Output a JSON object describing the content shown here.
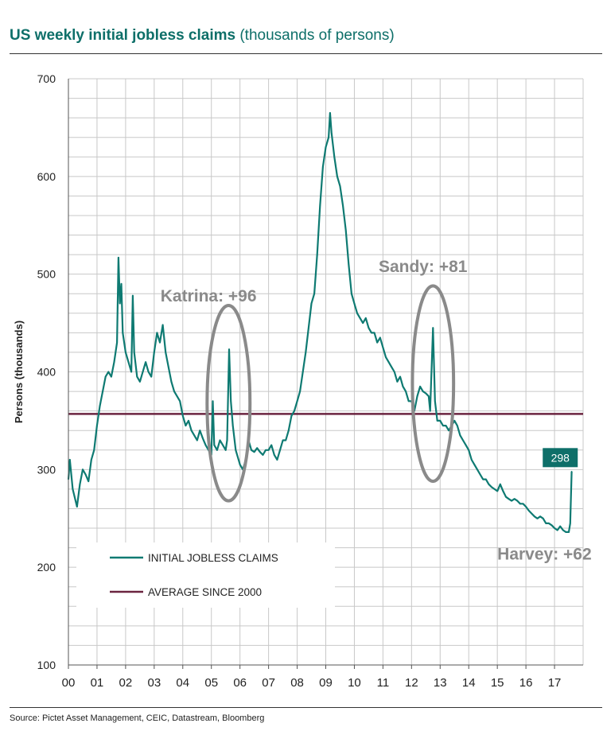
{
  "header": {
    "title_bold": "US weekly initial jobless claims",
    "title_rest": "(thousands of persons)"
  },
  "footer": {
    "source": "Source: Pictet Asset Management, CEIC, Datastream, Bloomberg"
  },
  "colors": {
    "claims": "#0e7a72",
    "average": "#6b2440",
    "ellipse": "#8a8a8a",
    "grid": "#c8c8c8",
    "annotation": "#8a8a8a",
    "badge_bg": "#0e6f69"
  },
  "chart_data": {
    "type": "line",
    "title": "US weekly initial jobless claims",
    "ylabel": "Persons (thousands)",
    "xlabel": "",
    "ylim": [
      100,
      700
    ],
    "xlim": [
      0,
      18
    ],
    "yticks": [
      100,
      200,
      300,
      400,
      500,
      600,
      700
    ],
    "xticks": [
      {
        "x": 0,
        "label": "00"
      },
      {
        "x": 1,
        "label": "01"
      },
      {
        "x": 2,
        "label": "02"
      },
      {
        "x": 3,
        "label": "03"
      },
      {
        "x": 4,
        "label": "04"
      },
      {
        "x": 5,
        "label": "05"
      },
      {
        "x": 6,
        "label": "06"
      },
      {
        "x": 7,
        "label": "07"
      },
      {
        "x": 8,
        "label": "08"
      },
      {
        "x": 9,
        "label": "09"
      },
      {
        "x": 10,
        "label": "10"
      },
      {
        "x": 11,
        "label": "11"
      },
      {
        "x": 12,
        "label": "12"
      },
      {
        "x": 13,
        "label": "13"
      },
      {
        "x": 14,
        "label": "14"
      },
      {
        "x": 15,
        "label": "15"
      },
      {
        "x": 16,
        "label": "16"
      },
      {
        "x": 17,
        "label": "17"
      }
    ],
    "legend": {
      "position": "bottom-left",
      "entries": [
        "INITIAL JOBLESS CLAIMS",
        "AVERAGE SINCE 2000"
      ]
    },
    "series": [
      {
        "name": "INITIAL JOBLESS CLAIMS",
        "points": [
          [
            0.0,
            290
          ],
          [
            0.05,
            310
          ],
          [
            0.15,
            280
          ],
          [
            0.25,
            268
          ],
          [
            0.3,
            262
          ],
          [
            0.4,
            285
          ],
          [
            0.5,
            300
          ],
          [
            0.6,
            295
          ],
          [
            0.7,
            288
          ],
          [
            0.8,
            310
          ],
          [
            0.9,
            320
          ],
          [
            1.0,
            345
          ],
          [
            1.1,
            365
          ],
          [
            1.2,
            380
          ],
          [
            1.3,
            395
          ],
          [
            1.4,
            400
          ],
          [
            1.5,
            395
          ],
          [
            1.6,
            410
          ],
          [
            1.7,
            430
          ],
          [
            1.75,
            517
          ],
          [
            1.8,
            470
          ],
          [
            1.85,
            490
          ],
          [
            1.9,
            440
          ],
          [
            2.0,
            420
          ],
          [
            2.1,
            410
          ],
          [
            2.2,
            400
          ],
          [
            2.25,
            478
          ],
          [
            2.3,
            420
          ],
          [
            2.4,
            395
          ],
          [
            2.5,
            390
          ],
          [
            2.6,
            400
          ],
          [
            2.7,
            410
          ],
          [
            2.8,
            400
          ],
          [
            2.9,
            395
          ],
          [
            3.0,
            420
          ],
          [
            3.1,
            440
          ],
          [
            3.2,
            430
          ],
          [
            3.3,
            448
          ],
          [
            3.4,
            420
          ],
          [
            3.5,
            405
          ],
          [
            3.6,
            390
          ],
          [
            3.7,
            380
          ],
          [
            3.8,
            375
          ],
          [
            3.9,
            370
          ],
          [
            4.0,
            355
          ],
          [
            4.1,
            345
          ],
          [
            4.2,
            350
          ],
          [
            4.3,
            340
          ],
          [
            4.4,
            335
          ],
          [
            4.5,
            330
          ],
          [
            4.6,
            340
          ],
          [
            4.7,
            332
          ],
          [
            4.8,
            325
          ],
          [
            4.9,
            320
          ],
          [
            5.0,
            315
          ],
          [
            5.05,
            370
          ],
          [
            5.1,
            325
          ],
          [
            5.2,
            320
          ],
          [
            5.3,
            330
          ],
          [
            5.4,
            325
          ],
          [
            5.5,
            320
          ],
          [
            5.55,
            330
          ],
          [
            5.62,
            423
          ],
          [
            5.68,
            370
          ],
          [
            5.75,
            345
          ],
          [
            5.85,
            320
          ],
          [
            5.95,
            310
          ],
          [
            6.0,
            305
          ],
          [
            6.1,
            300
          ],
          [
            6.2,
            310
          ],
          [
            6.3,
            330
          ],
          [
            6.4,
            320
          ],
          [
            6.5,
            318
          ],
          [
            6.6,
            322
          ],
          [
            6.7,
            318
          ],
          [
            6.8,
            315
          ],
          [
            6.9,
            320
          ],
          [
            7.0,
            320
          ],
          [
            7.1,
            325
          ],
          [
            7.2,
            315
          ],
          [
            7.3,
            310
          ],
          [
            7.4,
            320
          ],
          [
            7.5,
            330
          ],
          [
            7.6,
            330
          ],
          [
            7.7,
            340
          ],
          [
            7.8,
            355
          ],
          [
            7.9,
            360
          ],
          [
            8.0,
            370
          ],
          [
            8.1,
            380
          ],
          [
            8.2,
            400
          ],
          [
            8.3,
            420
          ],
          [
            8.4,
            445
          ],
          [
            8.5,
            470
          ],
          [
            8.6,
            480
          ],
          [
            8.7,
            520
          ],
          [
            8.8,
            570
          ],
          [
            8.9,
            610
          ],
          [
            9.0,
            630
          ],
          [
            9.1,
            640
          ],
          [
            9.15,
            665
          ],
          [
            9.2,
            645
          ],
          [
            9.3,
            620
          ],
          [
            9.4,
            600
          ],
          [
            9.5,
            590
          ],
          [
            9.6,
            570
          ],
          [
            9.7,
            545
          ],
          [
            9.8,
            510
          ],
          [
            9.9,
            480
          ],
          [
            10.0,
            470
          ],
          [
            10.1,
            460
          ],
          [
            10.2,
            455
          ],
          [
            10.3,
            450
          ],
          [
            10.4,
            455
          ],
          [
            10.5,
            445
          ],
          [
            10.6,
            440
          ],
          [
            10.7,
            440
          ],
          [
            10.8,
            430
          ],
          [
            10.9,
            435
          ],
          [
            11.0,
            425
          ],
          [
            11.1,
            415
          ],
          [
            11.2,
            410
          ],
          [
            11.3,
            405
          ],
          [
            11.4,
            400
          ],
          [
            11.5,
            390
          ],
          [
            11.6,
            395
          ],
          [
            11.7,
            385
          ],
          [
            11.8,
            380
          ],
          [
            11.9,
            370
          ],
          [
            12.0,
            370
          ],
          [
            12.1,
            360
          ],
          [
            12.2,
            375
          ],
          [
            12.3,
            385
          ],
          [
            12.4,
            380
          ],
          [
            12.5,
            378
          ],
          [
            12.6,
            375
          ],
          [
            12.65,
            360
          ],
          [
            12.75,
            445
          ],
          [
            12.82,
            370
          ],
          [
            12.9,
            350
          ],
          [
            13.0,
            350
          ],
          [
            13.1,
            345
          ],
          [
            13.2,
            345
          ],
          [
            13.3,
            340
          ],
          [
            13.4,
            345
          ],
          [
            13.5,
            350
          ],
          [
            13.6,
            345
          ],
          [
            13.7,
            335
          ],
          [
            13.8,
            330
          ],
          [
            13.9,
            325
          ],
          [
            14.0,
            320
          ],
          [
            14.1,
            310
          ],
          [
            14.2,
            305
          ],
          [
            14.3,
            300
          ],
          [
            14.4,
            295
          ],
          [
            14.5,
            290
          ],
          [
            14.6,
            290
          ],
          [
            14.7,
            285
          ],
          [
            14.8,
            282
          ],
          [
            14.9,
            280
          ],
          [
            15.0,
            278
          ],
          [
            15.1,
            285
          ],
          [
            15.2,
            278
          ],
          [
            15.3,
            272
          ],
          [
            15.4,
            270
          ],
          [
            15.5,
            268
          ],
          [
            15.6,
            270
          ],
          [
            15.7,
            268
          ],
          [
            15.8,
            265
          ],
          [
            15.9,
            265
          ],
          [
            16.0,
            262
          ],
          [
            16.1,
            258
          ],
          [
            16.2,
            255
          ],
          [
            16.3,
            252
          ],
          [
            16.4,
            250
          ],
          [
            16.5,
            252
          ],
          [
            16.6,
            250
          ],
          [
            16.7,
            245
          ],
          [
            16.8,
            245
          ],
          [
            16.9,
            243
          ],
          [
            17.0,
            240
          ],
          [
            17.1,
            238
          ],
          [
            17.2,
            242
          ],
          [
            17.3,
            238
          ],
          [
            17.4,
            236
          ],
          [
            17.5,
            236
          ],
          [
            17.55,
            245
          ],
          [
            17.6,
            298
          ]
        ]
      },
      {
        "name": "AVERAGE SINCE 2000",
        "value": 357
      }
    ],
    "annotations": [
      {
        "text": "Katrina: +96",
        "x": 5.6,
        "y": 368
      },
      {
        "text": "Sandy: +81",
        "x": 12.75,
        "y": 388
      },
      {
        "text": "Harvey: +62",
        "x": 17.55,
        "y": 268
      }
    ],
    "last_value_badge": "298"
  }
}
